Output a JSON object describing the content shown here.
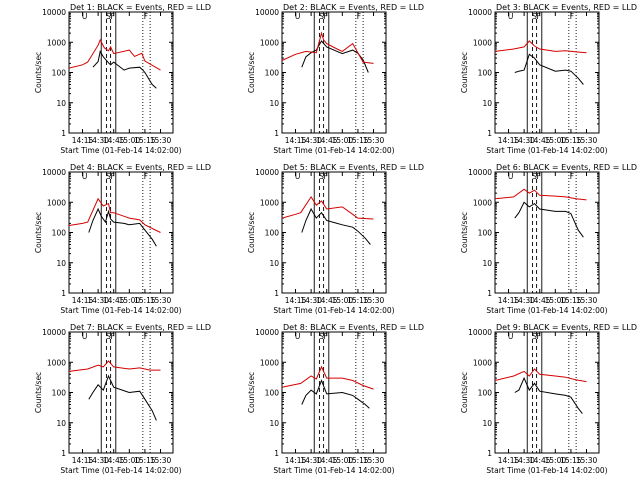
{
  "figure": {
    "xlabel": "Start Time (01-Feb-14 14:02:00)",
    "ylabel": "Counts/sec",
    "colors": {
      "events": "#000000",
      "lld": "#d40000"
    }
  },
  "chart_data": [
    {
      "type": "line",
      "title": "Det 1: BLACK = Events, RED = LLD",
      "markers": [
        "U",
        "S",
        "F",
        "F"
      ],
      "xticks": [
        "14:15",
        "14:30",
        "14:45",
        "15:00",
        "15:15",
        "15:30"
      ],
      "yticks": [
        "1",
        "10",
        "100",
        "1000",
        "10000"
      ],
      "ylim": [
        1,
        10000
      ],
      "series": [
        {
          "x": [
            14.15,
            14.21,
            14.25,
            14.3,
            14.32,
            14.35,
            14.4,
            14.42,
            14.45,
            14.55,
            15.0,
            15.1,
            15.13,
            15.15,
            15.22,
            15.26
          ],
          "values": [
            null,
            null,
            150,
            230,
            500,
            330,
            210,
            180,
            220,
            120,
            140,
            150,
            120,
            100,
            40,
            30
          ]
        },
        {
          "x": [
            14.02,
            14.15,
            14.2,
            14.3,
            14.32,
            14.36,
            14.4,
            14.42,
            14.45,
            15.0,
            15.05,
            15.12,
            15.15,
            15.3
          ],
          "values": [
            140,
            180,
            220,
            800,
            1200,
            650,
            520,
            700,
            420,
            550,
            340,
            430,
            240,
            120
          ]
        }
      ]
    },
    {
      "type": "line",
      "title": "Det 2: BLACK = Events, RED = LLD",
      "markers": [
        "U",
        "S",
        "F",
        "F"
      ],
      "xticks": [
        "14:15",
        "14:30",
        "14:45",
        "15:00",
        "15:15",
        "15:30"
      ],
      "yticks": [
        "1",
        "10",
        "100",
        "1000",
        "10000"
      ],
      "ylim": [
        1,
        10000
      ],
      "series": [
        {
          "x": [
            14.21,
            14.25,
            14.3,
            14.35,
            14.4,
            14.45,
            14.55,
            15.0,
            15.1,
            15.15,
            15.2,
            15.25
          ],
          "values": [
            150,
            330,
            450,
            550,
            1100,
            700,
            500,
            420,
            550,
            430,
            260,
            100
          ]
        },
        {
          "x": [
            14.02,
            14.15,
            14.25,
            14.35,
            14.4,
            14.42,
            14.45,
            14.55,
            15.0,
            15.1,
            15.2,
            15.3
          ],
          "values": [
            250,
            400,
            500,
            450,
            2000,
            1200,
            900,
            600,
            500,
            900,
            220,
            200
          ]
        }
      ]
    },
    {
      "type": "line",
      "title": "Det 3: BLACK = Events, RED = LLD",
      "markers": [
        "U",
        "S",
        "F",
        "F"
      ],
      "xticks": [
        "14:15",
        "14:30",
        "14:45",
        "15:00",
        "15:15",
        "15:30"
      ],
      "yticks": [
        "1",
        "10",
        "100",
        "1000",
        "10000"
      ],
      "ylim": [
        1,
        10000
      ],
      "series": [
        {
          "x": [
            14.21,
            14.25,
            14.3,
            14.35,
            14.4,
            14.45,
            15.0,
            15.1,
            15.15,
            15.22,
            15.27
          ],
          "values": [
            100,
            110,
            120,
            400,
            300,
            180,
            110,
            120,
            110,
            65,
            40
          ]
        },
        {
          "x": [
            14.02,
            14.2,
            14.3,
            14.35,
            14.4,
            14.45,
            15.0,
            15.1,
            15.2,
            15.3
          ],
          "values": [
            500,
            600,
            700,
            1100,
            750,
            600,
            500,
            520,
            480,
            450
          ]
        }
      ]
    },
    {
      "type": "line",
      "title": "Det 4: BLACK = Events, RED = LLD",
      "markers": [
        "U",
        "S",
        "F",
        "F"
      ],
      "xticks": [
        "14:15",
        "14:30",
        "14:45",
        "15:00",
        "15:15",
        "15:30"
      ],
      "yticks": [
        "1",
        "10",
        "100",
        "1000",
        "10000"
      ],
      "ylim": [
        1,
        10000
      ],
      "series": [
        {
          "x": [
            14.21,
            14.25,
            14.3,
            14.33,
            14.37,
            14.4,
            14.42,
            14.45,
            14.55,
            15.0,
            15.1,
            15.15,
            15.22,
            15.26
          ],
          "values": [
            100,
            250,
            600,
            350,
            220,
            500,
            280,
            220,
            200,
            180,
            200,
            120,
            60,
            35
          ]
        },
        {
          "x": [
            14.02,
            14.15,
            14.2,
            14.3,
            14.35,
            14.4,
            14.42,
            14.45,
            15.0,
            15.1,
            15.15,
            15.3
          ],
          "values": [
            170,
            200,
            220,
            1300,
            750,
            900,
            450,
            450,
            300,
            260,
            180,
            100
          ]
        }
      ]
    },
    {
      "type": "line",
      "title": "Det 5: BLACK = Events, RED = LLD",
      "markers": [
        "U",
        "S",
        "F",
        "F"
      ],
      "xticks": [
        "14:15",
        "14:30",
        "14:45",
        "15:00",
        "15:15",
        "15:30"
      ],
      "yticks": [
        "1",
        "10",
        "100",
        "1000",
        "10000"
      ],
      "ylim": [
        1,
        10000
      ],
      "series": [
        {
          "x": [
            14.21,
            14.25,
            14.3,
            14.35,
            14.4,
            14.45,
            14.55,
            15.0,
            15.1,
            15.15,
            15.22,
            15.27
          ],
          "values": [
            100,
            250,
            600,
            300,
            450,
            250,
            200,
            180,
            150,
            110,
            65,
            40
          ]
        },
        {
          "x": [
            14.02,
            14.15,
            14.2,
            14.3,
            14.35,
            14.4,
            14.45,
            15.0,
            15.1,
            15.15,
            15.3
          ],
          "values": [
            300,
            400,
            450,
            1500,
            800,
            1100,
            600,
            700,
            400,
            300,
            280
          ]
        }
      ]
    },
    {
      "type": "line",
      "title": "Det 6: BLACK = Events, RED = LLD",
      "markers": [
        "U",
        "S",
        "F",
        "F"
      ],
      "xticks": [
        "14:15",
        "14:30",
        "14:45",
        "15:00",
        "15:15",
        "15:30"
      ],
      "yticks": [
        "1",
        "10",
        "100",
        "1000",
        "10000"
      ],
      "ylim": [
        1,
        10000
      ],
      "series": [
        {
          "x": [
            14.21,
            14.25,
            14.3,
            14.35,
            14.4,
            14.45,
            15.0,
            15.1,
            15.15,
            15.22,
            15.27
          ],
          "values": [
            300,
            450,
            1000,
            700,
            900,
            600,
            500,
            500,
            420,
            120,
            70
          ]
        },
        {
          "x": [
            14.02,
            14.2,
            14.3,
            14.35,
            14.4,
            14.45,
            15.0,
            15.1,
            15.2,
            15.3
          ],
          "values": [
            1300,
            1500,
            2700,
            2000,
            2500,
            1700,
            1600,
            1500,
            1300,
            1200
          ]
        }
      ]
    },
    {
      "type": "line",
      "title": "Det 7: BLACK = Events, RED = LLD",
      "markers": [
        "U",
        "S",
        "F",
        "F"
      ],
      "xticks": [
        "14:15",
        "14:30",
        "14:45",
        "15:00",
        "15:15",
        "15:30"
      ],
      "yticks": [
        "1",
        "10",
        "100",
        "1000",
        "10000"
      ],
      "ylim": [
        1,
        10000
      ],
      "series": [
        {
          "x": [
            14.21,
            14.25,
            14.3,
            14.35,
            14.4,
            14.45,
            15.0,
            15.1,
            15.15,
            15.22,
            15.26
          ],
          "values": [
            60,
            100,
            180,
            120,
            350,
            150,
            100,
            110,
            60,
            25,
            12
          ]
        },
        {
          "x": [
            14.02,
            14.2,
            14.3,
            14.35,
            14.4,
            14.45,
            15.0,
            15.1,
            15.2,
            15.3
          ],
          "values": [
            500,
            600,
            800,
            700,
            1100,
            700,
            600,
            650,
            550,
            550
          ]
        }
      ]
    },
    {
      "type": "line",
      "title": "Det 8: BLACK = Events, RED = LLD",
      "markers": [
        "U",
        "S",
        "F",
        "F"
      ],
      "xticks": [
        "14:15",
        "14:30",
        "14:45",
        "15:00",
        "15:15",
        "15:30"
      ],
      "yticks": [
        "1",
        "10",
        "100",
        "1000",
        "10000"
      ],
      "ylim": [
        1,
        10000
      ],
      "series": [
        {
          "x": [
            14.21,
            14.25,
            14.3,
            14.35,
            14.4,
            14.45,
            15.0,
            15.1,
            15.15,
            15.22,
            15.26
          ],
          "values": [
            40,
            80,
            120,
            90,
            250,
            90,
            100,
            80,
            60,
            40,
            30
          ]
        },
        {
          "x": [
            14.02,
            14.2,
            14.3,
            14.35,
            14.4,
            14.45,
            15.0,
            15.1,
            15.2,
            15.3
          ],
          "values": [
            150,
            200,
            350,
            280,
            700,
            300,
            300,
            250,
            170,
            130
          ]
        }
      ]
    },
    {
      "type": "line",
      "title": "Det 9: BLACK = Events, RED = LLD",
      "markers": [
        "U",
        "S",
        "F",
        "F"
      ],
      "xticks": [
        "14:15",
        "14:30",
        "14:45",
        "15:00",
        "15:15",
        "15:30"
      ],
      "yticks": [
        "1",
        "10",
        "100",
        "1000",
        "10000"
      ],
      "ylim": [
        1,
        10000
      ],
      "series": [
        {
          "x": [
            14.21,
            14.25,
            14.3,
            14.35,
            14.4,
            14.45,
            15.0,
            15.1,
            15.15,
            15.22,
            15.26
          ],
          "values": [
            100,
            120,
            300,
            120,
            200,
            110,
            90,
            80,
            70,
            30,
            20
          ]
        },
        {
          "x": [
            14.02,
            14.2,
            14.3,
            14.35,
            14.4,
            14.45,
            15.0,
            15.1,
            15.2,
            15.3
          ],
          "values": [
            250,
            350,
            500,
            350,
            600,
            400,
            350,
            320,
            260,
            230
          ]
        }
      ]
    }
  ]
}
